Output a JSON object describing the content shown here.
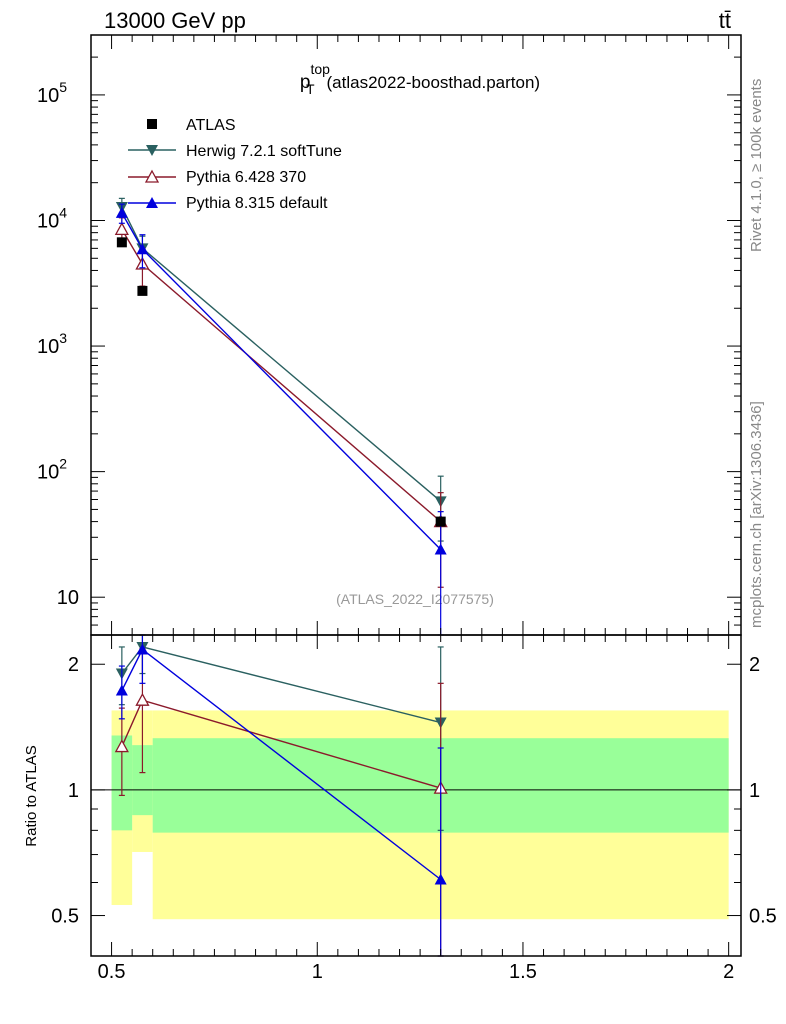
{
  "header": {
    "left_label": "13000 GeV pp",
    "right_label": "tt̄"
  },
  "side_text": {
    "rivet": "Rivet 4.1.0, ≥ 100k events",
    "mcplots": "mcplots.cern.ch [arXiv:1306.3436]"
  },
  "chart_data": {
    "type": "scatter",
    "title_main": "p",
    "title_sup": "top",
    "title_sub": "T",
    "title_rest": "(atlas2022-boosthad.parton)",
    "watermark": "(ATLAS_2022_I2077575)",
    "main_y_scale": "log",
    "main_ylim": [
      5,
      300000
    ],
    "main_ytick_values": [
      10,
      100,
      1000,
      10000,
      100000
    ],
    "main_ytick_labels": {
      "10": {
        "base": "10",
        "exp": ""
      },
      "100": {
        "base": "10",
        "exp": "2"
      },
      "1000": {
        "base": "10",
        "exp": "3"
      },
      "10000": {
        "base": "10",
        "exp": "4"
      },
      "100000": {
        "base": "10",
        "exp": "5"
      }
    },
    "xlim": [
      0.45,
      2.03
    ],
    "xtick_values": [
      0.5,
      1,
      1.5,
      2
    ],
    "xtick_labels": [
      "0.5",
      "1",
      "1.5",
      "2"
    ],
    "ratio_ylabel": "Ratio to ATLAS",
    "ratio_ylim": [
      0.4,
      2.35
    ],
    "ratio_ytick_values": [
      0.5,
      1,
      2
    ],
    "ratio_ytick_labels": [
      "0.5",
      "1",
      "2"
    ],
    "ratio_bands": [
      {
        "x0": 0.5,
        "x1": 0.55,
        "y_lo": 0.53,
        "y_hi": 1.55,
        "g_lo": 0.8,
        "g_hi": 1.35
      },
      {
        "x0": 0.55,
        "x1": 0.6,
        "y_lo": 0.71,
        "y_hi": 1.55,
        "g_lo": 0.87,
        "g_hi": 1.28
      },
      {
        "x0": 0.6,
        "x1": 2.0,
        "y_lo": 0.49,
        "y_hi": 1.55,
        "g_lo": 0.79,
        "g_hi": 1.33
      }
    ],
    "data_series": {
      "name": "ATLAS",
      "color": "#000000",
      "marker": "square",
      "x": [
        0.525,
        0.575,
        1.3
      ],
      "y": [
        6700,
        2750,
        40
      ]
    },
    "series": [
      {
        "name": "Herwig 7.2.1 softTune",
        "color": "#2a6060",
        "marker": "triangle-down",
        "x": [
          0.525,
          0.575,
          1.3
        ],
        "y": [
          12800,
          6000,
          58
        ],
        "yerr_lo": [
          10800,
          4500,
          28
        ],
        "yerr_hi": [
          15000,
          7500,
          92
        ],
        "ratio": [
          1.9,
          2.2,
          1.45
        ],
        "ratio_lo": [
          1.6,
          1.9,
          0.8
        ],
        "ratio_hi": [
          2.2,
          2.5,
          2.2
        ]
      },
      {
        "name": "Pythia 6.428 370",
        "color": "#8b1a2b",
        "marker": "triangle-up-open",
        "x": [
          0.525,
          0.575,
          1.3
        ],
        "y": [
          8500,
          4500,
          40
        ],
        "yerr_lo": [
          6500,
          3000,
          12
        ],
        "yerr_hi": [
          10500,
          6000,
          68
        ],
        "ratio": [
          1.27,
          1.64,
          1.01
        ],
        "ratio_lo": [
          0.97,
          1.1,
          0.4
        ],
        "ratio_hi": [
          1.57,
          2.18,
          1.8
        ]
      },
      {
        "name": "Pythia 8.315 default",
        "color": "#0000dd",
        "marker": "triangle-up",
        "x": [
          0.525,
          0.575,
          1.3
        ],
        "y": [
          11500,
          5900,
          24
        ],
        "yerr_lo": [
          9500,
          4200,
          4
        ],
        "yerr_hi": [
          13500,
          7700,
          48
        ],
        "ratio": [
          1.73,
          2.17,
          0.61
        ],
        "ratio_lo": [
          1.48,
          1.8,
          0.4
        ],
        "ratio_hi": [
          1.98,
          2.6,
          1.26
        ]
      }
    ]
  }
}
